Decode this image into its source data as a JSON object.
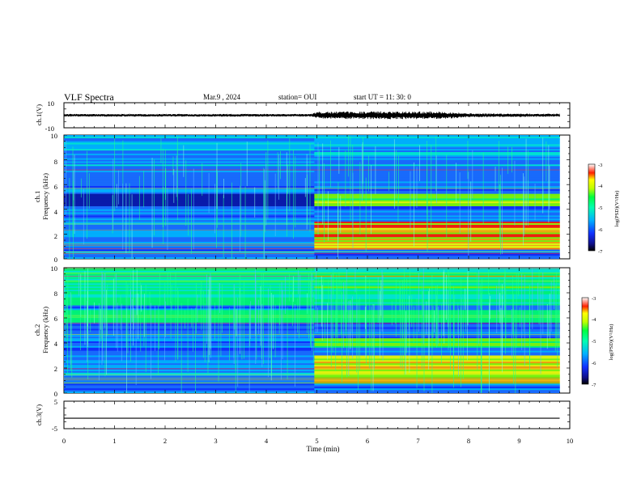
{
  "header": {
    "title": "VLF Spectra",
    "date": "Mar.9  , 2024",
    "station": "station= OUI",
    "start": "start  UT =   11: 30: 0"
  },
  "chart_data": [
    {
      "type": "line",
      "panel": "ch1-waveform",
      "ylabel": "ch.1(V)",
      "ylim": [
        -10,
        10
      ],
      "ytick_labels": [
        "10",
        "-10"
      ],
      "xlim": [
        0,
        10
      ],
      "series": [
        {
          "amplitude_envelope_V": [
            [
              0,
              1.0
            ],
            [
              4.9,
              1.0
            ],
            [
              5.0,
              2.8
            ],
            [
              6.5,
              3.2
            ],
            [
              7.5,
              3.0
            ],
            [
              8.0,
              1.5
            ],
            [
              9.8,
              1.2
            ]
          ]
        }
      ]
    },
    {
      "type": "heatmap",
      "panel": "ch1-spectrogram",
      "ylabel_top": "ch.1",
      "ylabel": "Frequency  (kHz)",
      "ylim": [
        0,
        10
      ],
      "ytick_labels": [
        "0",
        "2",
        "4",
        "6",
        "8",
        "10"
      ],
      "xlim": [
        0,
        10
      ],
      "data_end_min": 9.8,
      "colorbar": {
        "label": "log(PSD)(V²/Hz)",
        "range": [
          -7,
          -3
        ],
        "tick_labels": [
          "-3",
          "-4",
          "-5",
          "-6",
          "-7"
        ]
      }
    },
    {
      "type": "heatmap",
      "panel": "ch2-spectrogram",
      "ylabel_top": "ch.2",
      "ylabel": "Frequency  (kHz)",
      "ylim": [
        0,
        10
      ],
      "ytick_labels": [
        "0",
        "2",
        "4",
        "6",
        "8",
        "10"
      ],
      "xlim": [
        0,
        10
      ],
      "data_end_min": 9.8,
      "colorbar": {
        "label": "log(PSD)(V²/Hz)",
        "range": [
          -7,
          -3
        ],
        "tick_labels": [
          "-3",
          "-4",
          "-5",
          "-6",
          "-7"
        ]
      }
    },
    {
      "type": "line",
      "panel": "ch3-waveform",
      "ylabel": "ch.3(V)",
      "ylim": [
        -5,
        5
      ],
      "ytick_labels": [
        "5",
        "-5"
      ],
      "xlim": [
        0,
        10
      ],
      "xlabel": "Time  (min)",
      "xtick_labels": [
        "0",
        "1",
        "2",
        "3",
        "4",
        "5",
        "6",
        "7",
        "8",
        "9",
        "10"
      ],
      "series": [
        {
          "x": [
            0,
            9.8
          ],
          "values": [
            -1.2,
            -1.2
          ]
        }
      ]
    }
  ],
  "colors": {
    "axis": "#000000",
    "background": "#ffffff"
  }
}
